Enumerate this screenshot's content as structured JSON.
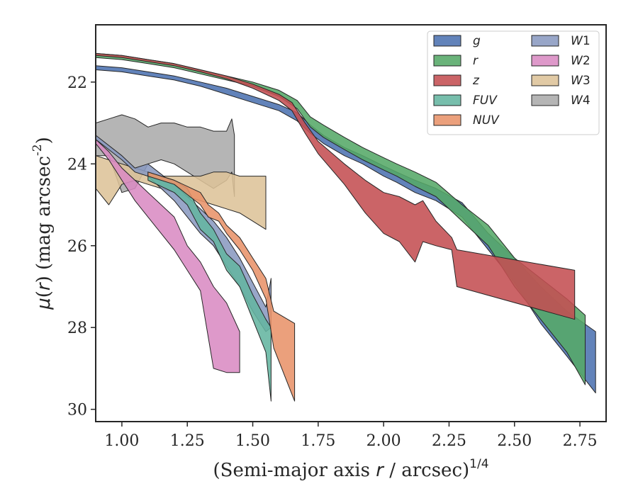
{
  "chart_data": {
    "type": "area",
    "xlabel": "(Semi-major axis r / arcsec)^(1/4)",
    "ylabel": "μ(r) (mag arcsec^-2)",
    "xlim": [
      0.9,
      2.85
    ],
    "ylim": [
      30.3,
      20.6
    ],
    "y_inverted": true,
    "x_ticks": [
      "1.00",
      "1.25",
      "1.50",
      "1.75",
      "2.00",
      "2.25",
      "2.50",
      "2.75"
    ],
    "y_ticks": [
      "22",
      "24",
      "26",
      "28",
      "30"
    ],
    "legend_position": "top-right",
    "grid": false,
    "series": [
      {
        "name": "g",
        "color": "#4c72b0",
        "x": [
          0.9,
          1.0,
          1.1,
          1.2,
          1.3,
          1.4,
          1.5,
          1.6,
          1.67,
          1.72,
          1.77,
          1.85,
          1.92,
          2.0,
          2.05,
          2.12,
          2.2,
          2.3,
          2.4,
          2.5,
          2.6,
          2.7,
          2.81
        ],
        "y_upper": [
          21.6,
          21.65,
          21.75,
          21.85,
          22.0,
          22.15,
          22.35,
          22.55,
          22.75,
          23.05,
          23.3,
          23.6,
          23.8,
          24.05,
          24.2,
          24.4,
          24.6,
          24.95,
          25.7,
          26.3,
          27.0,
          27.6,
          28.1
        ],
        "y_lower": [
          21.7,
          21.75,
          21.85,
          21.95,
          22.1,
          22.3,
          22.5,
          22.7,
          22.95,
          23.25,
          23.5,
          23.8,
          24.0,
          24.3,
          24.45,
          24.7,
          24.9,
          25.3,
          26.1,
          26.9,
          27.9,
          28.7,
          29.6
        ]
      },
      {
        "name": "r",
        "color": "#55a868",
        "x": [
          0.9,
          1.0,
          1.1,
          1.2,
          1.3,
          1.4,
          1.5,
          1.6,
          1.67,
          1.72,
          1.77,
          1.85,
          1.92,
          2.0,
          2.05,
          2.12,
          2.2,
          2.3,
          2.4,
          2.5,
          2.6,
          2.7,
          2.77
        ],
        "y_upper": [
          21.3,
          21.35,
          21.45,
          21.55,
          21.7,
          21.85,
          22.0,
          22.2,
          22.45,
          22.85,
          23.05,
          23.35,
          23.6,
          23.85,
          24.0,
          24.2,
          24.45,
          25.0,
          25.5,
          26.3,
          26.8,
          27.3,
          27.7
        ],
        "y_lower": [
          21.4,
          21.45,
          21.55,
          21.65,
          21.8,
          21.95,
          22.1,
          22.35,
          22.65,
          23.1,
          23.35,
          23.65,
          23.9,
          24.15,
          24.3,
          24.55,
          24.8,
          25.4,
          26.0,
          27.0,
          27.8,
          28.6,
          29.4
        ]
      },
      {
        "name": "z",
        "color": "#c44e52",
        "x": [
          0.9,
          1.0,
          1.1,
          1.2,
          1.3,
          1.4,
          1.5,
          1.6,
          1.65,
          1.7,
          1.75,
          1.85,
          1.93,
          2.0,
          2.06,
          2.12,
          2.15,
          2.2,
          2.26,
          2.28,
          2.73
        ],
        "y_upper": [
          21.3,
          21.35,
          21.45,
          21.55,
          21.7,
          21.85,
          22.05,
          22.3,
          22.5,
          23.0,
          23.45,
          24.0,
          24.4,
          24.7,
          24.8,
          25.0,
          24.9,
          25.4,
          25.8,
          26.1,
          26.6
        ],
        "y_lower": [
          21.35,
          21.4,
          21.5,
          21.6,
          21.75,
          21.92,
          22.15,
          22.45,
          22.7,
          23.25,
          23.75,
          24.5,
          25.2,
          25.7,
          25.9,
          26.4,
          25.9,
          26.0,
          26.1,
          27.0,
          27.8
        ]
      },
      {
        "name": "FUV",
        "color": "#64b5a0",
        "x": [
          1.1,
          1.2,
          1.25,
          1.3,
          1.35,
          1.4,
          1.45,
          1.5,
          1.55,
          1.57
        ],
        "y_upper": [
          24.2,
          24.4,
          24.6,
          25.2,
          25.6,
          26.2,
          26.5,
          27.2,
          27.8,
          28.0
        ],
        "y_lower": [
          24.4,
          24.7,
          25.0,
          25.6,
          25.9,
          26.6,
          27.0,
          27.8,
          28.6,
          29.8
        ]
      },
      {
        "name": "NUV",
        "color": "#e8936a",
        "x": [
          1.1,
          1.2,
          1.3,
          1.33,
          1.37,
          1.4,
          1.45,
          1.5,
          1.55,
          1.58,
          1.66
        ],
        "y_upper": [
          24.2,
          24.4,
          24.7,
          25.0,
          25.2,
          25.5,
          25.8,
          26.3,
          26.8,
          27.6,
          27.9
        ],
        "y_lower": [
          24.3,
          24.5,
          25.0,
          25.3,
          25.4,
          25.7,
          26.1,
          26.6,
          27.3,
          28.5,
          29.8
        ]
      },
      {
        "name": "W1",
        "color": "#8a9ac0",
        "x": [
          0.9,
          1.0,
          1.05,
          1.1,
          1.2,
          1.3,
          1.35,
          1.4,
          1.45,
          1.5,
          1.55,
          1.57
        ],
        "y_upper": [
          23.3,
          23.8,
          24.1,
          24.0,
          24.5,
          25.1,
          25.4,
          25.8,
          26.3,
          26.9,
          27.5,
          26.8
        ],
        "y_lower": [
          23.4,
          23.9,
          24.2,
          24.3,
          24.9,
          25.7,
          26.0,
          26.5,
          27.0,
          27.6,
          28.1,
          28.0
        ]
      },
      {
        "name": "W2",
        "color": "#da8bc3",
        "x": [
          0.9,
          0.95,
          1.0,
          1.05,
          1.1,
          1.15,
          1.2,
          1.25,
          1.3,
          1.35,
          1.4,
          1.45
        ],
        "y_upper": [
          23.4,
          23.7,
          24.1,
          24.4,
          24.7,
          25.0,
          25.3,
          26.0,
          26.4,
          27.0,
          27.4,
          28.1
        ],
        "y_lower": [
          23.5,
          23.9,
          24.4,
          24.9,
          25.3,
          25.7,
          26.1,
          26.6,
          27.1,
          29.0,
          29.1,
          29.1
        ]
      },
      {
        "name": "W3",
        "color": "#ddc399",
        "x": [
          0.9,
          0.95,
          1.0,
          1.05,
          1.1,
          1.15,
          1.2,
          1.25,
          1.3,
          1.35,
          1.4,
          1.45,
          1.5,
          1.55
        ],
        "y_upper": [
          23.8,
          23.9,
          24.0,
          24.1,
          24.2,
          24.3,
          24.3,
          24.3,
          24.3,
          24.2,
          24.2,
          24.3,
          24.3,
          24.3
        ],
        "y_lower": [
          24.6,
          25.0,
          24.5,
          24.4,
          24.5,
          24.6,
          24.7,
          24.8,
          24.9,
          25.0,
          25.1,
          25.2,
          25.4,
          25.6
        ]
      },
      {
        "name": "W4",
        "color": "#ababab",
        "x": [
          0.9,
          0.95,
          1.0,
          1.05,
          1.1,
          1.15,
          1.2,
          1.25,
          1.3,
          1.35,
          1.4,
          1.42,
          1.43
        ],
        "y_upper": [
          23.0,
          22.9,
          22.8,
          22.9,
          23.1,
          23.0,
          23.0,
          23.1,
          23.1,
          23.2,
          23.2,
          22.9,
          23.3
        ],
        "y_lower": [
          23.8,
          23.8,
          24.7,
          24.6,
          24.0,
          23.9,
          24.0,
          24.2,
          24.4,
          24.6,
          24.4,
          24.2,
          24.8
        ]
      }
    ]
  }
}
